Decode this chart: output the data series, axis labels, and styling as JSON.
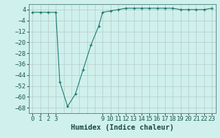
{
  "x": [
    0,
    1,
    2,
    3,
    3.5,
    4.5,
    5.5,
    6.5,
    7.5,
    8.5,
    9,
    10,
    11,
    12,
    13,
    14,
    15,
    16,
    17,
    18,
    19,
    20,
    21,
    22,
    23
  ],
  "y": [
    2,
    2,
    2,
    2,
    -49,
    -67,
    -58,
    -40,
    -22,
    -8,
    2,
    3,
    4,
    5,
    5,
    5,
    5,
    5,
    5,
    5,
    4,
    4,
    4,
    4,
    5
  ],
  "title": "",
  "xlabel": "Humidex (Indice chaleur)",
  "xlim": [
    -0.5,
    23.5
  ],
  "ylim": [
    -72,
    8
  ],
  "yticks": [
    4,
    -4,
    -12,
    -20,
    -28,
    -36,
    -44,
    -52,
    -60,
    -68
  ],
  "xticks": [
    0,
    1,
    2,
    3,
    9,
    10,
    11,
    12,
    13,
    14,
    15,
    16,
    17,
    18,
    19,
    20,
    21,
    22,
    23
  ],
  "xgrid_ticks": [
    0,
    1,
    2,
    3,
    4,
    5,
    6,
    7,
    8,
    9,
    10,
    11,
    12,
    13,
    14,
    15,
    16,
    17,
    18,
    19,
    20,
    21,
    22,
    23
  ],
  "bg_color": "#cff0ec",
  "grid_major_color": "#b8c8c5",
  "grid_minor_color": "#d4e8e5",
  "line_color": "#1a7a6e",
  "marker_color": "#1a7a6e",
  "tick_label_color": "#1a5a50",
  "xlabel_color": "#1a4a40",
  "spine_color": "#5a8a84",
  "font_family": "monospace",
  "xlabel_fontsize": 7.5,
  "tick_fontsize": 6.5
}
